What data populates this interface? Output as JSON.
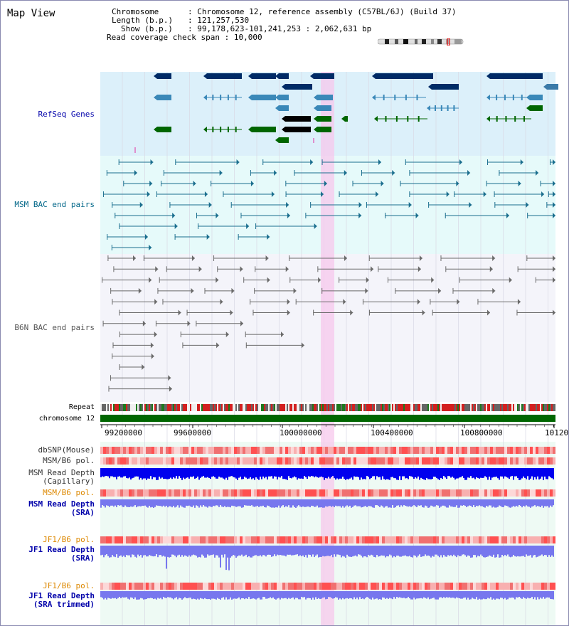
{
  "title": "Map View",
  "info": {
    "chromosome_label": "Chromosome",
    "chromosome_value": "Chromosome 12, reference assembly (C57BL/6J) (Build 37)",
    "length_label": "Length (b.p.)",
    "length_value": "121,257,530",
    "show_label": "Show (b.p.)",
    "show_value": "99,178,623-101,241,253 : 2,062,631 bp",
    "coverage_label": "Read coverage check span",
    "coverage_value": "10,000"
  },
  "tracks": {
    "refseq": {
      "label": "RefSeq Genes",
      "color": "#0000aa"
    },
    "msm_bac": {
      "label": "MSM BAC end pairs",
      "color": "#006688"
    },
    "b6n_bac": {
      "label": "B6N BAC end pairs",
      "color": "#555555"
    },
    "repeat": {
      "label": "Repeat"
    },
    "chromosome": {
      "label": "chromosome 12"
    },
    "dbsnp": {
      "label": "dbSNP(Mouse)"
    },
    "msm_b6_pol": {
      "label": "MSM/B6 pol."
    },
    "msm_depth_cap": {
      "label1": "MSM Read Depth",
      "label2": "(Capillary)"
    },
    "msm_b6_pol_sra": {
      "label": "MSM/B6 pol."
    },
    "msm_depth_sra": {
      "label1": "MSM Read Depth",
      "label2": "(SRA)"
    },
    "jf1_b6_pol": {
      "label": "JF1/B6 pol."
    },
    "jf1_depth_sra": {
      "label1": "JF1 Read Depth",
      "label2": "(SRA)"
    },
    "jf1_b6_pol2": {
      "label": "JF1/B6 pol."
    },
    "jf1_depth_trim": {
      "label1": "JF1 Read Depth",
      "label2": "(SRA trimmed)"
    }
  },
  "ruler": {
    "ticks": [
      "99200000",
      "99600000",
      "100000000",
      "100400000",
      "100800000",
      "10120"
    ]
  },
  "colors": {
    "refseq_bg": "#dcf0fa",
    "bac_bg": "#e6fafa",
    "b6n_bg": "#f4f4fa",
    "highlight": "#f9d5f0",
    "chromosome_bar": "#006600",
    "depth_blue": "#0000ee",
    "depth_light": "#7777ee",
    "orange_label": "#dd8800"
  }
}
